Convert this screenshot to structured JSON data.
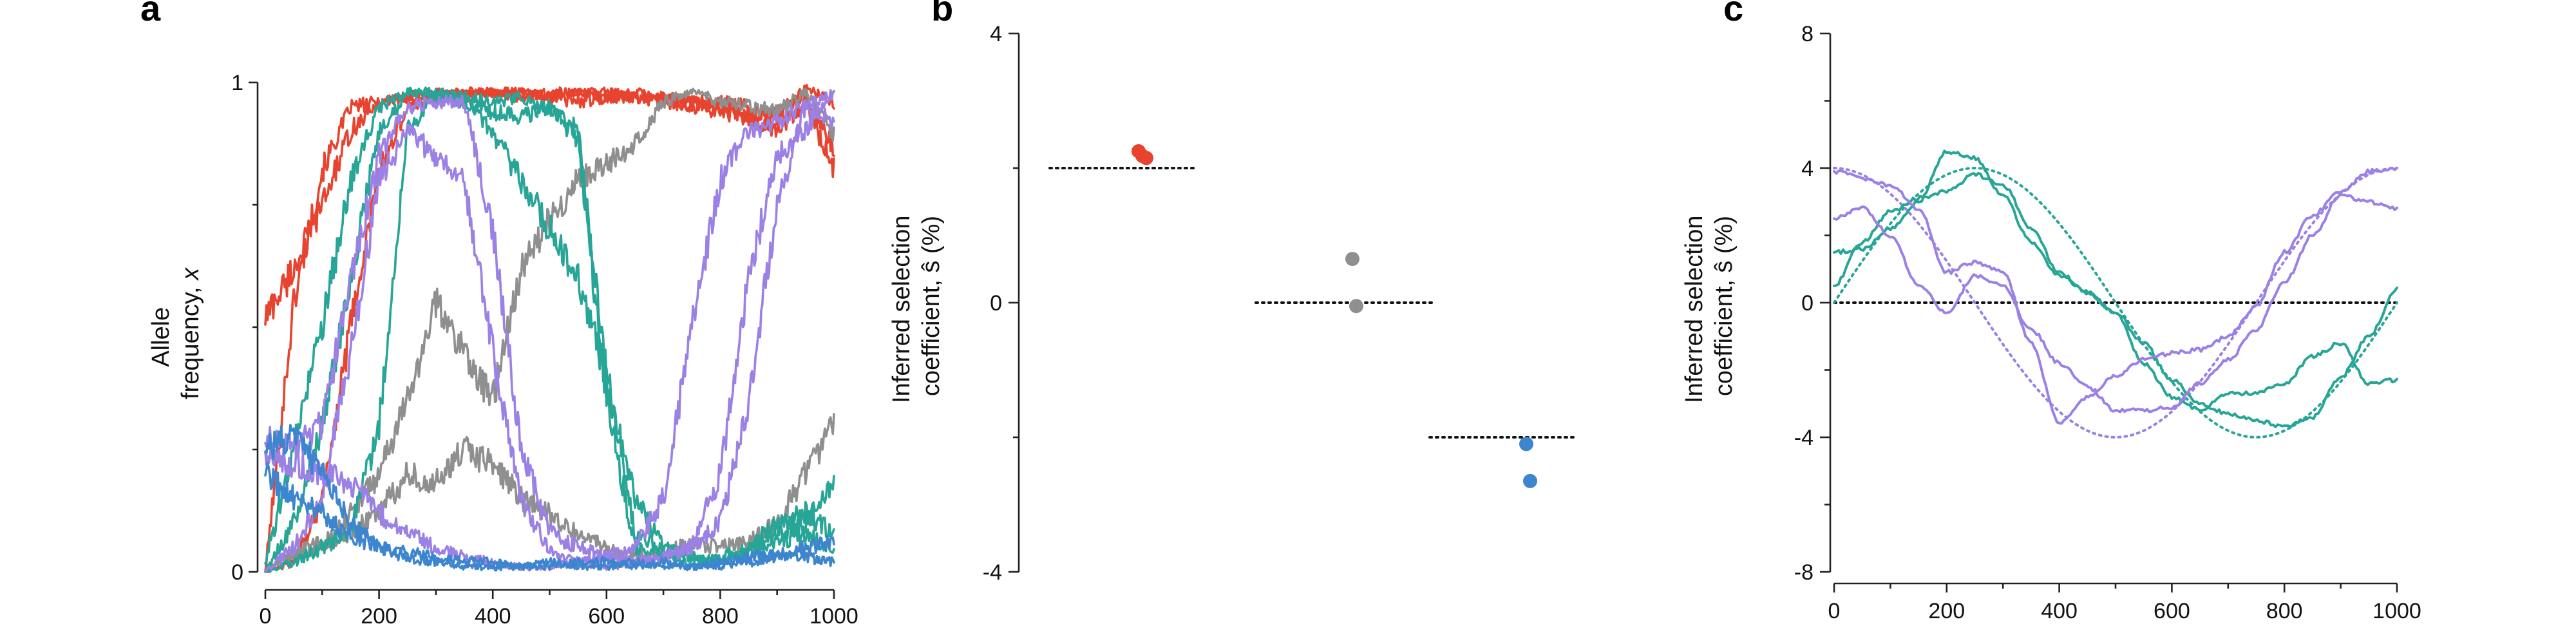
{
  "colors": {
    "red": "#e8432f",
    "gray": "#8f8f8f",
    "teal": "#27a596",
    "purple": "#9b80e6",
    "blue": "#3d86cf",
    "zero_line": "#111111"
  },
  "panels": {
    "a": {
      "label": "a",
      "ylabel_line1": "Allele",
      "ylabel_line2": "frequency, ",
      "ylabel_var": "x",
      "xticks": [
        "0",
        "200",
        "400",
        "600",
        "800",
        "1000"
      ],
      "yticks": [
        "0",
        "1"
      ]
    },
    "b": {
      "label": "b",
      "ylabel_line1": "Inferred selection",
      "ylabel_line2": "coefficient, ŝ (%)",
      "yticks": [
        "-4",
        "0",
        "4"
      ]
    },
    "c": {
      "label": "c",
      "ylabel_line1": "Inferred selection",
      "ylabel_line2": "coefficient, ŝ (%)",
      "xticks": [
        "0",
        "200",
        "400",
        "600",
        "800",
        "1000"
      ],
      "yticks": [
        "-8",
        "-4",
        "0",
        "4",
        "8"
      ]
    }
  },
  "chart_data": [
    {
      "panel": "a",
      "type": "line",
      "xlim": [
        0,
        1000
      ],
      "ylim": [
        0,
        1
      ],
      "x": [
        0,
        50,
        100,
        150,
        200,
        250,
        300,
        350,
        400,
        450,
        500,
        550,
        600,
        650,
        700,
        750,
        800,
        850,
        900,
        950,
        1000
      ],
      "series": [
        {
          "color": "red",
          "values": [
            0.0,
            0.55,
            0.82,
            0.95,
            0.96,
            0.97,
            0.98,
            0.97,
            0.98,
            0.97,
            0.98,
            0.98,
            0.97,
            0.98,
            0.97,
            0.96,
            0.95,
            0.93,
            0.94,
            0.97,
            0.87
          ]
        },
        {
          "color": "red",
          "values": [
            0.52,
            0.62,
            0.75,
            0.9,
            0.96,
            0.97,
            0.97,
            0.98,
            0.98,
            0.98,
            0.97,
            0.98,
            0.98,
            0.97,
            0.97,
            0.96,
            0.96,
            0.95,
            0.93,
            0.99,
            0.96
          ]
        },
        {
          "color": "red",
          "values": [
            0.0,
            0.02,
            0.15,
            0.5,
            0.82,
            0.95,
            0.97,
            0.98,
            0.98,
            0.98,
            0.97,
            0.96,
            0.97,
            0.97,
            0.96,
            0.95,
            0.94,
            0.93,
            0.9,
            0.96,
            0.82
          ]
        },
        {
          "color": "gray",
          "values": [
            0.0,
            0.03,
            0.05,
            0.12,
            0.2,
            0.35,
            0.55,
            0.45,
            0.35,
            0.62,
            0.72,
            0.8,
            0.83,
            0.88,
            0.96,
            0.98,
            0.96,
            0.95,
            0.94,
            0.98,
            0.89
          ]
        },
        {
          "color": "gray",
          "values": [
            0.0,
            0.04,
            0.06,
            0.08,
            0.12,
            0.2,
            0.18,
            0.25,
            0.22,
            0.15,
            0.12,
            0.08,
            0.05,
            0.03,
            0.04,
            0.06,
            0.05,
            0.06,
            0.1,
            0.2,
            0.3
          ]
        },
        {
          "color": "teal",
          "values": [
            0.02,
            0.25,
            0.5,
            0.8,
            0.95,
            0.98,
            0.97,
            0.96,
            0.94,
            0.93,
            0.95,
            0.88,
            0.35,
            0.05,
            0.03,
            0.02,
            0.03,
            0.05,
            0.08,
            0.1,
            0.18
          ]
        },
        {
          "color": "teal",
          "values": [
            0.0,
            0.1,
            0.3,
            0.6,
            0.9,
            0.98,
            0.98,
            0.97,
            0.96,
            0.97,
            0.95,
            0.9,
            0.4,
            0.08,
            0.04,
            0.03,
            0.02,
            0.04,
            0.06,
            0.08,
            0.04
          ]
        },
        {
          "color": "teal",
          "values": [
            0.0,
            0.02,
            0.05,
            0.08,
            0.3,
            0.9,
            0.98,
            0.97,
            0.9,
            0.8,
            0.7,
            0.6,
            0.4,
            0.15,
            0.05,
            0.03,
            0.02,
            0.05,
            0.1,
            0.12,
            0.08
          ]
        },
        {
          "color": "purple",
          "values": [
            0.27,
            0.25,
            0.3,
            0.6,
            0.85,
            0.95,
            0.96,
            0.96,
            0.7,
            0.25,
            0.08,
            0.05,
            0.03,
            0.02,
            0.03,
            0.05,
            0.1,
            0.35,
            0.75,
            0.95,
            0.98
          ]
        },
        {
          "color": "purple",
          "values": [
            0.0,
            0.05,
            0.15,
            0.45,
            0.8,
            0.9,
            0.85,
            0.8,
            0.45,
            0.15,
            0.04,
            0.02,
            0.01,
            0.02,
            0.03,
            0.05,
            0.2,
            0.6,
            0.85,
            0.9,
            0.98
          ]
        },
        {
          "color": "purple",
          "values": [
            0.25,
            0.22,
            0.2,
            0.18,
            0.12,
            0.08,
            0.05,
            0.03,
            0.02,
            0.01,
            0.01,
            0.02,
            0.03,
            0.05,
            0.15,
            0.5,
            0.8,
            0.9,
            0.92,
            0.95,
            0.92
          ]
        },
        {
          "color": "blue",
          "values": [
            0.25,
            0.28,
            0.2,
            0.1,
            0.05,
            0.03,
            0.02,
            0.01,
            0.01,
            0.01,
            0.02,
            0.01,
            0.01,
            0.02,
            0.01,
            0.01,
            0.02,
            0.03,
            0.04,
            0.03,
            0.02
          ]
        },
        {
          "color": "blue",
          "values": [
            0.2,
            0.15,
            0.12,
            0.07,
            0.05,
            0.04,
            0.03,
            0.02,
            0.02,
            0.01,
            0.01,
            0.02,
            0.02,
            0.01,
            0.02,
            0.01,
            0.01,
            0.02,
            0.03,
            0.05,
            0.06
          ]
        }
      ]
    },
    {
      "panel": "b",
      "type": "scatter",
      "ylim": [
        -4,
        4
      ],
      "groups": [
        {
          "color": "red",
          "true_s": 2.0,
          "points": [
            2.25,
            2.18,
            2.15
          ]
        },
        {
          "color": "gray",
          "true_s": 0.0,
          "points": [
            0.65,
            -0.05
          ]
        },
        {
          "color": "blue",
          "true_s": -2.0,
          "points": [
            -2.1,
            -2.65
          ]
        }
      ]
    },
    {
      "panel": "c",
      "type": "line",
      "xlim": [
        0,
        1000
      ],
      "ylim": [
        -8,
        8
      ],
      "x": [
        0,
        50,
        100,
        150,
        200,
        250,
        300,
        350,
        400,
        450,
        500,
        550,
        600,
        650,
        700,
        750,
        800,
        850,
        900,
        950,
        1000
      ],
      "series": [
        {
          "color": "teal",
          "values": [
            1.5,
            1.6,
            2.2,
            3.0,
            4.5,
            4.3,
            3.2,
            1.8,
            0.8,
            0.3,
            -0.3,
            -1.2,
            -2.3,
            -3.0,
            -3.3,
            -3.5,
            -3.7,
            -3.4,
            -2.2,
            -1.0,
            0.4
          ]
        },
        {
          "color": "teal",
          "values": [
            0.5,
            1.8,
            2.7,
            3.1,
            3.3,
            3.8,
            3.5,
            2.2,
            0.9,
            0.3,
            -0.3,
            -1.8,
            -2.8,
            -3.2,
            -2.7,
            -2.7,
            -2.4,
            -1.6,
            -1.2,
            -2.4,
            -2.3
          ]
        },
        {
          "color": "purple",
          "values": [
            2.5,
            2.8,
            2.0,
            0.5,
            -0.3,
            0.8,
            0.5,
            -0.8,
            -1.8,
            -2.5,
            -3.2,
            -3.2,
            -3.1,
            -2.4,
            -1.7,
            -0.8,
            0.6,
            2.0,
            3.2,
            3.0,
            2.8
          ]
        },
        {
          "color": "purple",
          "values": [
            3.9,
            3.7,
            3.5,
            2.8,
            0.9,
            1.2,
            0.9,
            -1.2,
            -3.6,
            -2.8,
            -2.2,
            -1.7,
            -1.5,
            -1.4,
            -1.0,
            -0.1,
            1.5,
            2.6,
            3.3,
            3.9,
            4.0
          ]
        }
      ],
      "true_functions": [
        {
          "color": "teal",
          "form": "4·sin(2π·t/1000)"
        },
        {
          "color": "purple",
          "form": "4·cos(2π·t/1000)"
        }
      ]
    }
  ]
}
